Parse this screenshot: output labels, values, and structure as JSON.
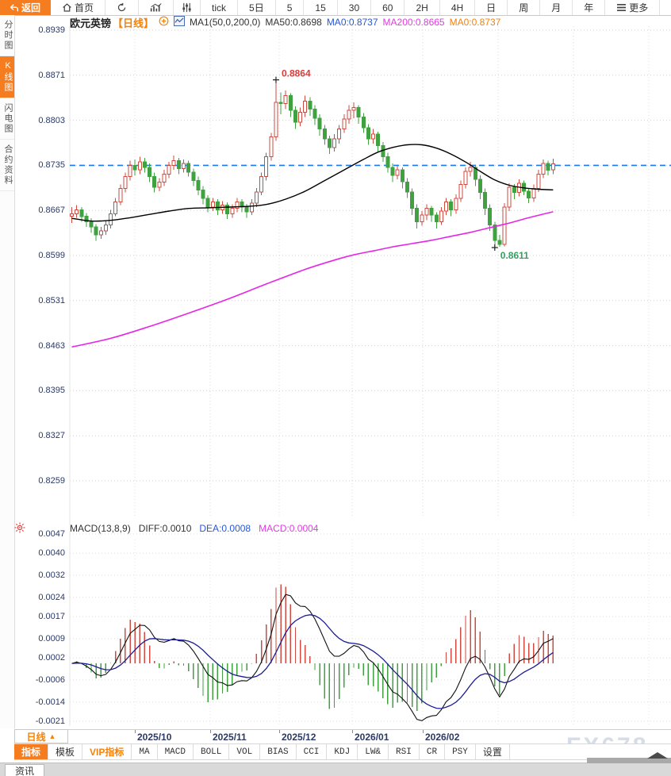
{
  "toolbar": {
    "back": "返回",
    "home": "首页",
    "periods": [
      "tick",
      "5日",
      "5",
      "15",
      "30",
      "60",
      "2H",
      "4H",
      "日",
      "周",
      "月",
      "年"
    ],
    "more": "更多",
    "fx_label": "fx"
  },
  "sidebar": {
    "items": [
      {
        "label": "分时图",
        "active": false
      },
      {
        "label": "K线图",
        "active": true
      },
      {
        "label": "闪电图",
        "active": false
      },
      {
        "label": "合约资料",
        "active": false
      }
    ]
  },
  "chart_header": {
    "symbol": "欧元英镑",
    "period": "【日线】",
    "ma_params": "MA1(50,0,200,0)",
    "ma50": "MA50:0.8698",
    "ma0_blue": "MA0:0.8737",
    "ma200": "MA200:0.8665",
    "ma0_orange": "MA0:0.8737"
  },
  "macd_header": {
    "params": "MACD(13,8,9)",
    "diff": "DIFF:0.0010",
    "dea": "DEA:0.0008",
    "macd": "MACD:0.0004"
  },
  "bottom": {
    "period_label": "日线",
    "period_arrow": "▲",
    "tabs": [
      {
        "label": "指标",
        "active": true
      },
      {
        "label": "模板"
      },
      {
        "label": "VIP指标",
        "vip": true
      },
      {
        "label": "MA",
        "mono": true
      },
      {
        "label": "MACD",
        "mono": true
      },
      {
        "label": "BOLL",
        "mono": true
      },
      {
        "label": "VOL",
        "mono": true
      },
      {
        "label": "BIAS",
        "mono": true
      },
      {
        "label": "CCI",
        "mono": true
      },
      {
        "label": "KDJ",
        "mono": true
      },
      {
        "label": "LW&",
        "mono": true
      },
      {
        "label": "RSI",
        "mono": true
      },
      {
        "label": "CR",
        "mono": true
      },
      {
        "label": "PSY",
        "mono": true
      },
      {
        "label": "设置"
      }
    ],
    "news_tab": "资讯",
    "watermark": "FX678"
  },
  "colors": {
    "accent_orange": "#f57d1f",
    "up_red": "#cf4b42",
    "down_green": "#3fa13f",
    "ma50_black": "#000000",
    "ma200_magenta": "#e527e5",
    "price_line_blue": "#1e78e8",
    "dea_blue": "#1c1c96",
    "axis_navy": "#2b3a64",
    "high_label_red": "#e03a3a",
    "low_label_green": "#35a060"
  },
  "chart_data": {
    "type": "candlestick",
    "title": "欧元英镑 日线 (EUR/GBP Daily) with MA overlays and MACD(13,8,9)",
    "price_axis_labels": [
      0.8939,
      0.8871,
      0.8803,
      0.8735,
      0.8667,
      0.8599,
      0.8531,
      0.8463,
      0.8395,
      0.8327,
      0.8259
    ],
    "macd_axis_labels": [
      0.0047,
      0.004,
      0.0032,
      0.0024,
      0.0017,
      0.0009,
      0.0002,
      -0.0006,
      -0.0014,
      -0.0021
    ],
    "x_axis_labels": [
      "2025/10",
      "2025/11",
      "2025/12",
      "2026/01",
      "2026/02"
    ],
    "current_price_line": 0.8735,
    "high_annotation": {
      "text": "0.8864",
      "index": 42
    },
    "low_annotation": {
      "text": "0.8611",
      "index": 87
    },
    "candles_ohlc": [
      [
        0.8658,
        0.8672,
        0.8648,
        0.8662
      ],
      [
        0.8662,
        0.8675,
        0.8656,
        0.8668
      ],
      [
        0.8668,
        0.8672,
        0.865,
        0.8658
      ],
      [
        0.8658,
        0.8663,
        0.8642,
        0.865
      ],
      [
        0.865,
        0.8655,
        0.8633,
        0.8642
      ],
      [
        0.8642,
        0.8646,
        0.8621,
        0.863
      ],
      [
        0.863,
        0.8642,
        0.8624,
        0.8636
      ],
      [
        0.8636,
        0.8652,
        0.863,
        0.8645
      ],
      [
        0.8645,
        0.8668,
        0.864,
        0.8662
      ],
      [
        0.8662,
        0.8686,
        0.8658,
        0.868
      ],
      [
        0.868,
        0.8706,
        0.8675,
        0.87
      ],
      [
        0.87,
        0.8724,
        0.8694,
        0.8718
      ],
      [
        0.8718,
        0.8742,
        0.8712,
        0.8735
      ],
      [
        0.8735,
        0.8744,
        0.872,
        0.8728
      ],
      [
        0.8728,
        0.8748,
        0.8722,
        0.874
      ],
      [
        0.874,
        0.8746,
        0.8724,
        0.8732
      ],
      [
        0.8732,
        0.8738,
        0.871,
        0.8718
      ],
      [
        0.8718,
        0.8724,
        0.8694,
        0.8702
      ],
      [
        0.8702,
        0.8716,
        0.8696,
        0.871
      ],
      [
        0.871,
        0.8728,
        0.8704,
        0.8722
      ],
      [
        0.8722,
        0.874,
        0.8716,
        0.8735
      ],
      [
        0.8735,
        0.875,
        0.8728,
        0.8742
      ],
      [
        0.8742,
        0.8746,
        0.8722,
        0.873
      ],
      [
        0.873,
        0.8744,
        0.8724,
        0.8738
      ],
      [
        0.8738,
        0.8742,
        0.8718,
        0.8725
      ],
      [
        0.8725,
        0.873,
        0.8704,
        0.8712
      ],
      [
        0.8712,
        0.8718,
        0.869,
        0.8698
      ],
      [
        0.8698,
        0.8704,
        0.8676,
        0.8685
      ],
      [
        0.8685,
        0.869,
        0.8664,
        0.8672
      ],
      [
        0.8672,
        0.8686,
        0.8666,
        0.868
      ],
      [
        0.868,
        0.8684,
        0.866,
        0.8668
      ],
      [
        0.8668,
        0.8681,
        0.8662,
        0.8675
      ],
      [
        0.8675,
        0.8679,
        0.8654,
        0.8662
      ],
      [
        0.8662,
        0.8676,
        0.8656,
        0.867
      ],
      [
        0.867,
        0.8686,
        0.8664,
        0.868
      ],
      [
        0.868,
        0.8684,
        0.8664,
        0.8672
      ],
      [
        0.8672,
        0.8677,
        0.8656,
        0.8665
      ],
      [
        0.8665,
        0.8684,
        0.866,
        0.8678
      ],
      [
        0.8678,
        0.8701,
        0.8672,
        0.8695
      ],
      [
        0.8695,
        0.8724,
        0.869,
        0.8718
      ],
      [
        0.8718,
        0.8754,
        0.8712,
        0.8748
      ],
      [
        0.8748,
        0.8784,
        0.8742,
        0.8778
      ],
      [
        0.8778,
        0.8864,
        0.8772,
        0.883
      ],
      [
        0.883,
        0.8845,
        0.8812,
        0.8828
      ],
      [
        0.8828,
        0.8848,
        0.882,
        0.884
      ],
      [
        0.884,
        0.8844,
        0.8808,
        0.8818
      ],
      [
        0.8818,
        0.8824,
        0.879,
        0.88
      ],
      [
        0.88,
        0.8822,
        0.8794,
        0.8815
      ],
      [
        0.8815,
        0.884,
        0.8808,
        0.8832
      ],
      [
        0.8832,
        0.8838,
        0.881,
        0.882
      ],
      [
        0.882,
        0.8826,
        0.8796,
        0.8806
      ],
      [
        0.8806,
        0.8812,
        0.878,
        0.879
      ],
      [
        0.879,
        0.8796,
        0.8766,
        0.8775
      ],
      [
        0.8775,
        0.878,
        0.8752,
        0.8762
      ],
      [
        0.8762,
        0.8782,
        0.8756,
        0.8775
      ],
      [
        0.8775,
        0.8796,
        0.8768,
        0.879
      ],
      [
        0.879,
        0.8812,
        0.8784,
        0.8805
      ],
      [
        0.8805,
        0.8826,
        0.8798,
        0.8818
      ],
      [
        0.8818,
        0.883,
        0.8806,
        0.8822
      ],
      [
        0.8822,
        0.8826,
        0.8798,
        0.8808
      ],
      [
        0.8808,
        0.8814,
        0.8784,
        0.8792
      ],
      [
        0.8792,
        0.8797,
        0.8766,
        0.8775
      ],
      [
        0.8775,
        0.879,
        0.8768,
        0.8782
      ],
      [
        0.8782,
        0.8786,
        0.8756,
        0.8765
      ],
      [
        0.8765,
        0.877,
        0.874,
        0.8748
      ],
      [
        0.8748,
        0.8754,
        0.8724,
        0.8732
      ],
      [
        0.8732,
        0.8738,
        0.871,
        0.872
      ],
      [
        0.872,
        0.8734,
        0.8714,
        0.8728
      ],
      [
        0.8728,
        0.8732,
        0.87,
        0.871
      ],
      [
        0.871,
        0.8716,
        0.8686,
        0.8695
      ],
      [
        0.8695,
        0.87,
        0.866,
        0.867
      ],
      [
        0.867,
        0.8676,
        0.864,
        0.865
      ],
      [
        0.865,
        0.8666,
        0.8644,
        0.866
      ],
      [
        0.866,
        0.8676,
        0.8652,
        0.867
      ],
      [
        0.867,
        0.8674,
        0.865,
        0.866
      ],
      [
        0.866,
        0.8664,
        0.864,
        0.865
      ],
      [
        0.865,
        0.8672,
        0.8645,
        0.8666
      ],
      [
        0.8666,
        0.8686,
        0.866,
        0.868
      ],
      [
        0.868,
        0.8684,
        0.8658,
        0.8668
      ],
      [
        0.8668,
        0.8691,
        0.8662,
        0.8685
      ],
      [
        0.8685,
        0.8712,
        0.868,
        0.8706
      ],
      [
        0.8706,
        0.8732,
        0.87,
        0.8726
      ],
      [
        0.8726,
        0.874,
        0.8718,
        0.8732
      ],
      [
        0.8732,
        0.8736,
        0.8704,
        0.8714
      ],
      [
        0.8714,
        0.872,
        0.8684,
        0.8694
      ],
      [
        0.8694,
        0.87,
        0.866,
        0.867
      ],
      [
        0.867,
        0.8676,
        0.8636,
        0.8645
      ],
      [
        0.8645,
        0.865,
        0.8611,
        0.8622
      ],
      [
        0.8622,
        0.863,
        0.8612,
        0.8616
      ],
      [
        0.8616,
        0.8678,
        0.8613,
        0.8672
      ],
      [
        0.8672,
        0.8708,
        0.8666,
        0.8702
      ],
      [
        0.8702,
        0.8707,
        0.8684,
        0.8694
      ],
      [
        0.8694,
        0.8714,
        0.8688,
        0.8708
      ],
      [
        0.8708,
        0.8712,
        0.869,
        0.8696
      ],
      [
        0.8696,
        0.8701,
        0.8678,
        0.8686
      ],
      [
        0.8686,
        0.8706,
        0.868,
        0.87
      ],
      [
        0.87,
        0.8728,
        0.8695,
        0.8722
      ],
      [
        0.8722,
        0.8744,
        0.8716,
        0.8738
      ],
      [
        0.8738,
        0.8742,
        0.872,
        0.8728
      ],
      [
        0.8728,
        0.8745,
        0.8722,
        0.8737
      ]
    ],
    "ma50_points": [
      [
        0,
        0.8655
      ],
      [
        4,
        0.8651
      ],
      [
        8,
        0.8652
      ],
      [
        12,
        0.8656
      ],
      [
        16,
        0.8661
      ],
      [
        20,
        0.8666
      ],
      [
        24,
        0.867
      ],
      [
        28,
        0.8671
      ],
      [
        32,
        0.8672
      ],
      [
        36,
        0.8673
      ],
      [
        40,
        0.8676
      ],
      [
        44,
        0.8684
      ],
      [
        48,
        0.8696
      ],
      [
        52,
        0.8712
      ],
      [
        56,
        0.8728
      ],
      [
        60,
        0.8744
      ],
      [
        63,
        0.8755
      ],
      [
        66,
        0.8762
      ],
      [
        69,
        0.8766
      ],
      [
        72,
        0.8766
      ],
      [
        75,
        0.8761
      ],
      [
        78,
        0.8752
      ],
      [
        81,
        0.874
      ],
      [
        84,
        0.8726
      ],
      [
        87,
        0.8713
      ],
      [
        90,
        0.8705
      ],
      [
        93,
        0.8701
      ],
      [
        96,
        0.8699
      ],
      [
        99,
        0.8698
      ]
    ],
    "ma200_points": [
      [
        0,
        0.8461
      ],
      [
        8,
        0.8474
      ],
      [
        16,
        0.8492
      ],
      [
        24,
        0.8512
      ],
      [
        32,
        0.8533
      ],
      [
        40,
        0.8556
      ],
      [
        48,
        0.8578
      ],
      [
        54,
        0.8592
      ],
      [
        58,
        0.86
      ],
      [
        62,
        0.8606
      ],
      [
        66,
        0.8612
      ],
      [
        70,
        0.8617
      ],
      [
        74,
        0.8622
      ],
      [
        78,
        0.8628
      ],
      [
        82,
        0.8634
      ],
      [
        86,
        0.8641
      ],
      [
        90,
        0.8648
      ],
      [
        94,
        0.8656
      ],
      [
        99,
        0.8665
      ]
    ],
    "macd": {
      "fast": 8,
      "slow": 13,
      "signal": 9,
      "diff_last": 0.001,
      "dea_last": 0.0008,
      "hist_last": 0.0004
    }
  }
}
